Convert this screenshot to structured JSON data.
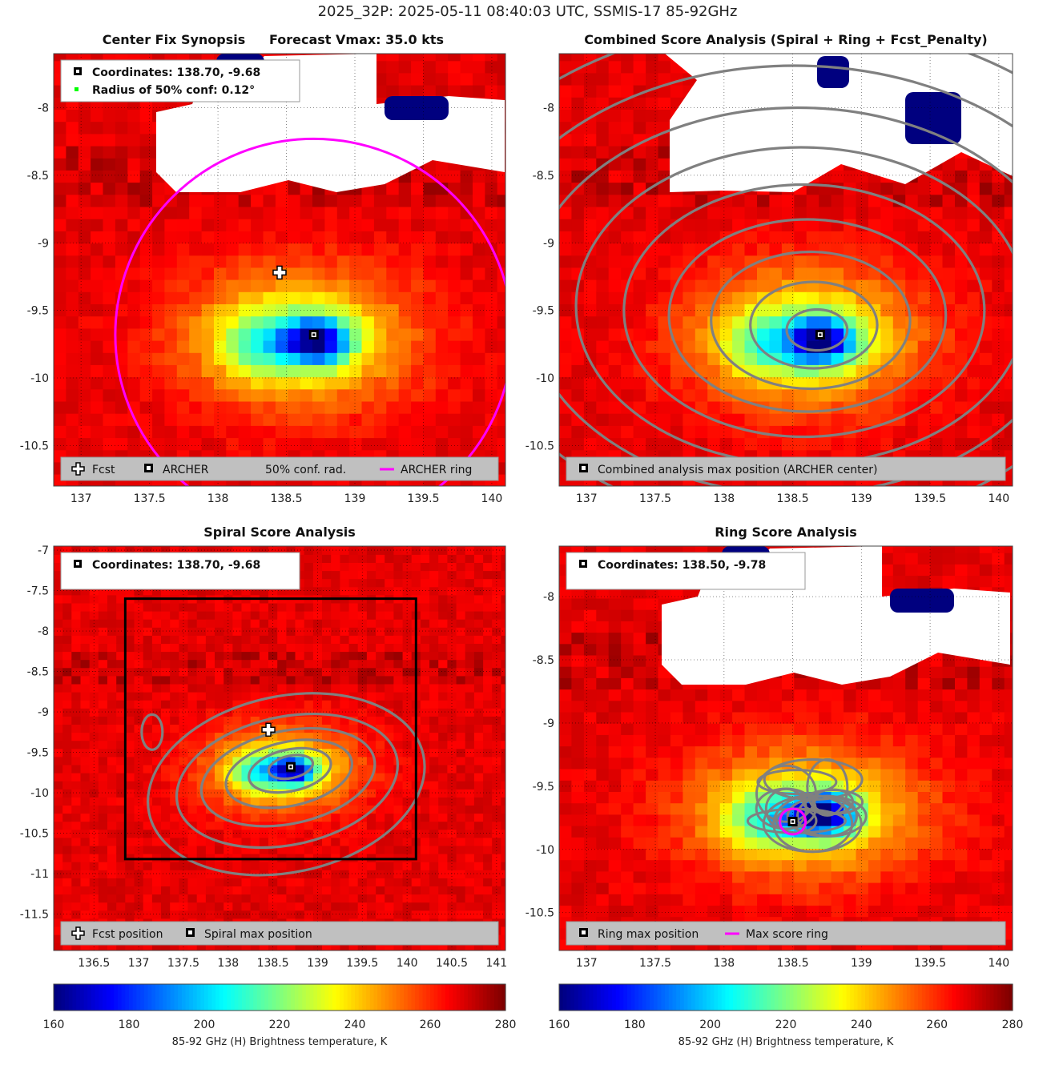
{
  "title": "2025_32P: 2025-05-11 08:40:03 UTC, SSMIS-17 85-92GHz",
  "colormap": [
    "#00007f",
    "#0000ff",
    "#007fff",
    "#00ffff",
    "#7fff7f",
    "#ffff00",
    "#ff7f00",
    "#ff0000",
    "#7f0000"
  ],
  "colorbar": {
    "label": "85-92 GHz (H) Brightness temperature, K",
    "ticks": [
      "160",
      "180",
      "200",
      "220",
      "240",
      "260",
      "280"
    ]
  },
  "panels": [
    {
      "title": "Center Fix Synopsis",
      "title2": "Forecast Vmax: 35.0 kts",
      "info_lines": [
        "Coordinates: 138.70, -9.68",
        "Radius of 50% conf: 0.12°"
      ],
      "legend": [
        "Fcst",
        "ARCHER",
        "50% conf. rad.",
        "ARCHER ring"
      ]
    },
    {
      "title": "Combined Score Analysis (Spiral + Ring + Fcst_Penalty)",
      "legend": [
        "Combined analysis max position (ARCHER center)"
      ]
    },
    {
      "title": "Spiral Score Analysis",
      "info_lines": [
        "Coordinates: 138.70, -9.68"
      ],
      "legend": [
        "Fcst position",
        "Spiral max position"
      ]
    },
    {
      "title": "Ring Score Analysis",
      "info_lines": [
        "Coordinates: 138.50, -9.78"
      ],
      "legend": [
        "Ring max position",
        "Max score ring"
      ]
    }
  ],
  "chart_data": [
    {
      "type": "heatmap",
      "title": "Center Fix Synopsis",
      "subtitle": "Forecast Vmax: 35.0 kts",
      "xlim": [
        136.8,
        140.1
      ],
      "ylim": [
        -10.8,
        -7.6
      ],
      "xticks": [
        137,
        137.5,
        138,
        138.5,
        139,
        139.5,
        140
      ],
      "yticks": [
        -8,
        -8.5,
        -9,
        -9.5,
        -10,
        -10.5
      ],
      "clim": [
        160,
        280
      ],
      "archer_center": [
        138.7,
        -9.68
      ],
      "fcst_position": [
        138.45,
        -9.22
      ],
      "archer_ring_radius_deg": 1.45,
      "conf_radius_deg": 0.12
    },
    {
      "type": "heatmap",
      "title": "Combined Score Analysis (Spiral + Ring + Fcst_Penalty)",
      "xlim": [
        136.8,
        140.1
      ],
      "ylim": [
        -10.8,
        -7.6
      ],
      "xticks": [
        137,
        137.5,
        138,
        138.5,
        139,
        139.5,
        140
      ],
      "yticks": [
        -8,
        -8.5,
        -9,
        -9.5,
        -10,
        -10.5
      ],
      "clim": [
        160,
        280
      ],
      "max_position": [
        138.7,
        -9.68
      ]
    },
    {
      "type": "heatmap",
      "title": "Spiral Score Analysis",
      "xlim": [
        136.05,
        141.1
      ],
      "ylim": [
        -11.95,
        -6.95
      ],
      "xticks": [
        136.5,
        137,
        137.5,
        138,
        138.5,
        139,
        139.5,
        140,
        140.5,
        141
      ],
      "yticks": [
        -7,
        -7.5,
        -8,
        -8.5,
        -9,
        -9.5,
        -10,
        -10.5,
        -11,
        -11.5
      ],
      "clim": [
        160,
        280
      ],
      "spiral_max": [
        138.7,
        -9.68
      ],
      "fcst_position": [
        138.45,
        -9.22
      ]
    },
    {
      "type": "heatmap",
      "title": "Ring Score Analysis",
      "xlim": [
        136.8,
        140.1
      ],
      "ylim": [
        -10.8,
        -7.6
      ],
      "xticks": [
        137,
        137.5,
        138,
        138.5,
        139,
        139.5,
        140
      ],
      "yticks": [
        -8,
        -8.5,
        -9,
        -9.5,
        -10,
        -10.5
      ],
      "clim": [
        160,
        280
      ],
      "ring_max": [
        138.5,
        -9.78
      ]
    }
  ]
}
